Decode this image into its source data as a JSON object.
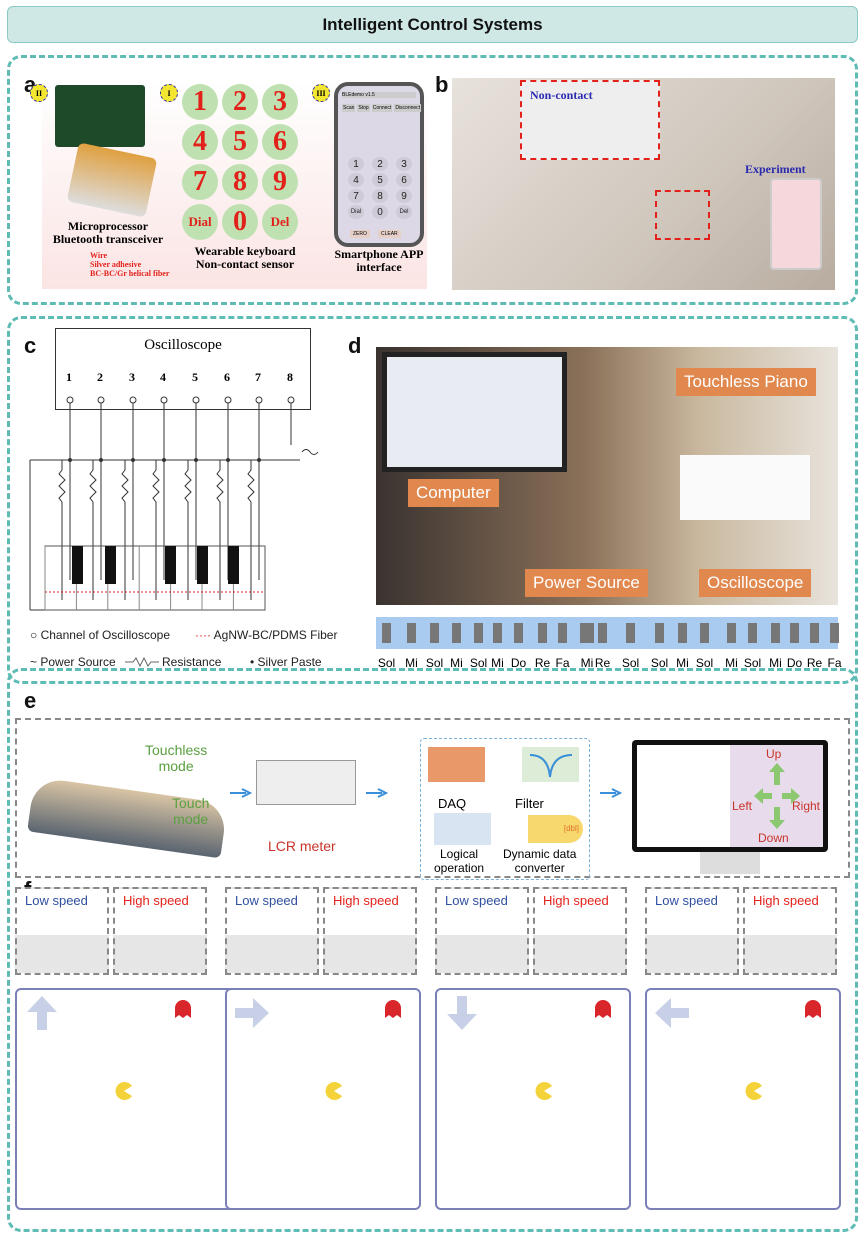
{
  "title": "Intelligent Control Systems",
  "panel_a": {
    "label": "a",
    "badges": [
      "II",
      "I",
      "III"
    ],
    "keys": [
      "1",
      "2",
      "3",
      "4",
      "5",
      "6",
      "7",
      "8",
      "9",
      "Dial",
      "0",
      "Del"
    ],
    "micro_caption": [
      "Microprocessor",
      "Bluetooth transceiver"
    ],
    "keyboard_caption": [
      "Wearable keyboard",
      "Non-contact sensor"
    ],
    "phone_caption": [
      "Smartphone APP",
      "interface"
    ],
    "legend": [
      "Wire",
      "Silver adhesive",
      "BC-BC/Gr helical fiber"
    ],
    "phone": {
      "header": "BLEdemo v1.5",
      "buttons": [
        "Scan",
        "Stop",
        "Connect",
        "Disconnect"
      ],
      "keys": [
        "1",
        "2",
        "3",
        "4",
        "5",
        "6",
        "7",
        "8",
        "9",
        "Dial",
        "0",
        "Del"
      ],
      "bottom": [
        "ZERO",
        "CLEAR"
      ]
    }
  },
  "panel_b": {
    "label": "b",
    "non_contact": "Non-contact",
    "experiment": "Experiment"
  },
  "panel_c": {
    "label": "c",
    "oscilloscope": "Oscilloscope",
    "channels": [
      "1",
      "2",
      "3",
      "4",
      "5",
      "6",
      "7",
      "8"
    ],
    "legend": [
      "Channel of Oscilloscope",
      "AgNW-BC/PDMS Fiber",
      "Power Source",
      "Resistance",
      "Silver Paste"
    ]
  },
  "panel_d": {
    "label": "d",
    "tags": [
      "Touchless Piano",
      "Computer",
      "Power Source",
      "Oscilloscope"
    ],
    "notes": [
      "Sol",
      "Mi",
      "Sol",
      "Mi",
      "Sol",
      "Mi",
      "Do",
      "Re",
      "Fa",
      "Mi",
      "Re",
      "Sol",
      "Sol",
      "Mi",
      "Sol",
      "Mi",
      "Sol",
      "Mi",
      "Do",
      "Re",
      "Fa"
    ]
  },
  "panel_e": {
    "label": "e",
    "touchless": [
      "Touchless",
      "mode"
    ],
    "touch": [
      "Touch",
      "mode"
    ],
    "lcr": "LCR meter",
    "daq": "DAQ",
    "filter": "Filter",
    "logical": [
      "Logical",
      "operation"
    ],
    "converter": [
      "Dynamic data",
      "converter"
    ],
    "dbl": "[dbl]",
    "dirs": [
      "Up",
      "Left",
      "Right",
      "Down"
    ]
  },
  "panel_f": {
    "label": "f",
    "low": "Low speed",
    "high": "High speed"
  },
  "colors": {
    "teal": "#5fbcb4",
    "red": "#e3211b",
    "blue": "#2f4fa0",
    "orange": "#e0884e"
  }
}
